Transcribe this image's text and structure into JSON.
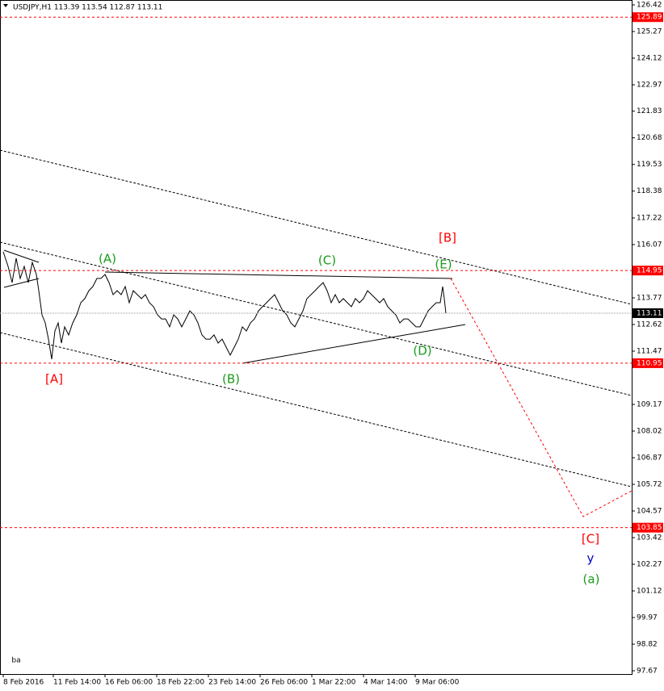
{
  "chart_data": {
    "type": "line",
    "title": "USDJPY,H1  113.39 113.54 112.87 113.11",
    "color": "#000000",
    "x": [
      0,
      6,
      11,
      16,
      21,
      26,
      31,
      36,
      41,
      44,
      48,
      52,
      56,
      60,
      64,
      68,
      72,
      76,
      81,
      86,
      91,
      96,
      101,
      106,
      111,
      116,
      121,
      126,
      131,
      136,
      141,
      146,
      151,
      156,
      161,
      166,
      171,
      176,
      181,
      186,
      191,
      196,
      201,
      206,
      211,
      216,
      221,
      226,
      231,
      236,
      241,
      246,
      251,
      256,
      261,
      266,
      271,
      276,
      281,
      286,
      291,
      296,
      301,
      306,
      311,
      316,
      321,
      326,
      331,
      336,
      341,
      346,
      351,
      356,
      361,
      366,
      371,
      376,
      381,
      386,
      391,
      396,
      401,
      406,
      411,
      416,
      421,
      426,
      431,
      436,
      441,
      446,
      451,
      456,
      461,
      466,
      471,
      476,
      481,
      486,
      491,
      496,
      501,
      506,
      511,
      516,
      521,
      526,
      531,
      536,
      541,
      544,
      546,
      548
    ],
    "values": [
      115.76,
      115.13,
      114.43,
      115.48,
      114.61,
      115.13,
      114.43,
      115.3,
      114.78,
      114.08,
      113.04,
      112.69,
      111.99,
      111.12,
      112.34,
      112.69,
      111.82,
      112.52,
      112.17,
      112.69,
      113.04,
      113.56,
      113.74,
      114.08,
      114.26,
      114.61,
      114.61,
      114.78,
      114.43,
      113.91,
      114.08,
      113.91,
      114.26,
      113.56,
      114.08,
      113.91,
      113.74,
      113.91,
      113.56,
      113.39,
      113.04,
      112.86,
      112.86,
      112.52,
      113.04,
      112.86,
      112.52,
      112.86,
      113.21,
      113.04,
      112.69,
      112.17,
      111.99,
      111.99,
      112.17,
      111.82,
      111.99,
      111.64,
      111.3,
      111.64,
      111.99,
      112.52,
      112.34,
      112.69,
      112.86,
      113.21,
      113.39,
      113.56,
      113.74,
      113.91,
      113.56,
      113.21,
      113.04,
      112.69,
      112.52,
      112.86,
      113.21,
      113.74,
      113.91,
      114.08,
      114.26,
      114.43,
      114.08,
      113.56,
      113.91,
      113.56,
      113.74,
      113.56,
      113.39,
      113.74,
      113.56,
      113.74,
      114.08,
      113.91,
      113.74,
      113.56,
      113.74,
      113.39,
      113.21,
      113.04,
      112.69,
      112.86,
      112.86,
      112.69,
      112.52,
      112.52,
      112.86,
      113.21,
      113.39,
      113.56,
      113.56,
      114.26,
      113.74,
      113.11
    ],
    "xlim": [
      -4,
      778
    ],
    "ylim": [
      97.53,
      126.63
    ],
    "xticks": [
      {
        "value": 0,
        "label": "8 Feb 2016"
      },
      {
        "value": 62,
        "label": "11 Feb 14:00"
      },
      {
        "value": 126,
        "label": "16 Feb 06:00"
      },
      {
        "value": 190,
        "label": "18 Feb 22:00"
      },
      {
        "value": 254,
        "label": "23 Feb 14:00"
      },
      {
        "value": 318,
        "label": "26 Feb 06:00"
      },
      {
        "value": 382,
        "label": "1 Mar 22:00"
      },
      {
        "value": 446,
        "label": "4 Mar 14:00"
      },
      {
        "value": 510,
        "label": "9 Mar 06:00"
      }
    ],
    "yticks": [
      126.42,
      125.27,
      124.12,
      122.97,
      121.83,
      120.68,
      119.53,
      118.38,
      117.22,
      116.07,
      113.77,
      112.62,
      111.47,
      109.17,
      108.02,
      106.87,
      105.72,
      104.57,
      103.42,
      102.27,
      101.12,
      99.97,
      98.82,
      97.67
    ],
    "levels": [
      {
        "value": 125.89,
        "color": "#ff0000"
      },
      {
        "value": 114.95,
        "color": "#ff0000"
      },
      {
        "value": 110.95,
        "color": "#ff0000"
      },
      {
        "value": 103.85,
        "color": "#ff0000"
      },
      {
        "value": 113.11,
        "color": "#000000"
      }
    ],
    "annotations": [
      {
        "text": "[A]",
        "color": "#ff0000"
      },
      {
        "text": "(A)",
        "color": "#1a9a1a"
      },
      {
        "text": "(B)",
        "color": "#1a9a1a"
      },
      {
        "text": "(C)",
        "color": "#1a9a1a"
      },
      {
        "text": "(D)",
        "color": "#1a9a1a"
      },
      {
        "text": "(E)",
        "color": "#1a9a1a"
      },
      {
        "text": "[B]",
        "color": "#ff0000"
      },
      {
        "text": "[C]",
        "color": "#ff0000"
      },
      {
        "text": "y",
        "color": "#0000cc"
      },
      {
        "text": "(a)",
        "color": "#1a9a1a"
      },
      {
        "text": "ba",
        "color": "#000000"
      }
    ]
  }
}
